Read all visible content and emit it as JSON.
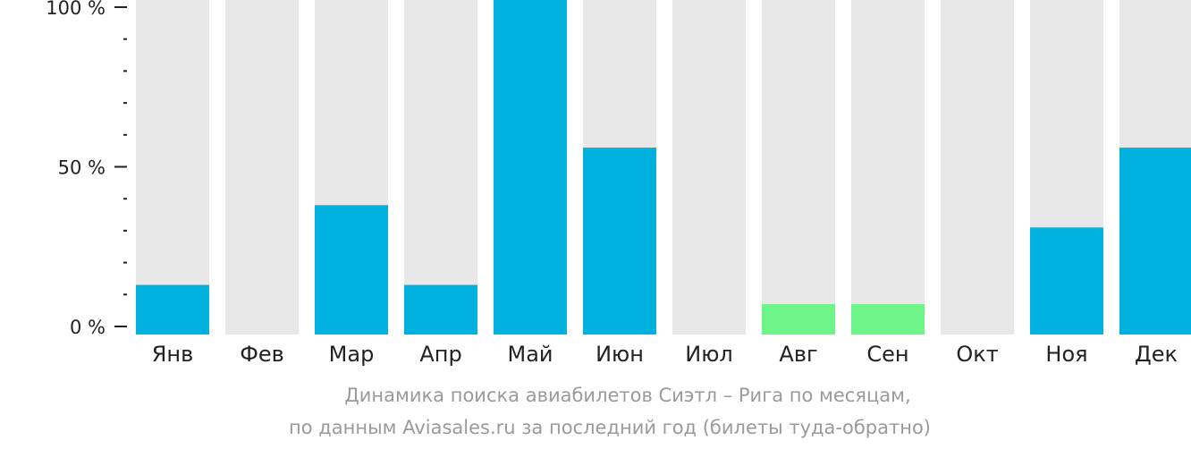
{
  "chart_data": {
    "type": "bar",
    "categories": [
      "Янв",
      "Фев",
      "Мар",
      "Апр",
      "Май",
      "Июн",
      "Июл",
      "Авг",
      "Сен",
      "Окт",
      "Ноя",
      "Дек"
    ],
    "values": [
      13,
      0,
      38,
      13,
      100,
      56,
      0,
      7,
      7,
      0,
      31,
      56
    ],
    "highlight": [
      false,
      false,
      false,
      false,
      false,
      false,
      false,
      true,
      true,
      false,
      false,
      false
    ],
    "ylim": [
      0,
      100
    ],
    "y_ticks": [
      0,
      50,
      100
    ],
    "y_tick_labels": [
      "0 %",
      "50 %",
      "100 %"
    ],
    "y_minor_step": 10,
    "title": "Динамика поиска авиабилетов Сиэтл – Рига по месяцам,",
    "subtitle": "по данным Aviasales.ru за последний год (билеты туда-обратно)",
    "xlabel": "",
    "ylabel": "",
    "grid": false,
    "colors": {
      "bar": "#00b1dd",
      "highlight": "#6ef589",
      "track": "#e8e8e8",
      "axis": "#222222"
    }
  }
}
